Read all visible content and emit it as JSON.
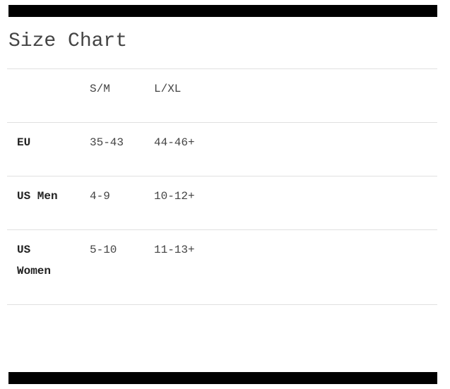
{
  "title": "Size Chart",
  "table": {
    "headers": [
      "",
      "S/M",
      "L/XL"
    ],
    "rows": [
      {
        "label": "EU",
        "values": [
          "35-43",
          "44-46+"
        ]
      },
      {
        "label": "US Men",
        "values": [
          "4-9",
          "10-12+"
        ]
      },
      {
        "label": "US Women",
        "values": [
          "5-10",
          "11-13+"
        ]
      }
    ]
  }
}
